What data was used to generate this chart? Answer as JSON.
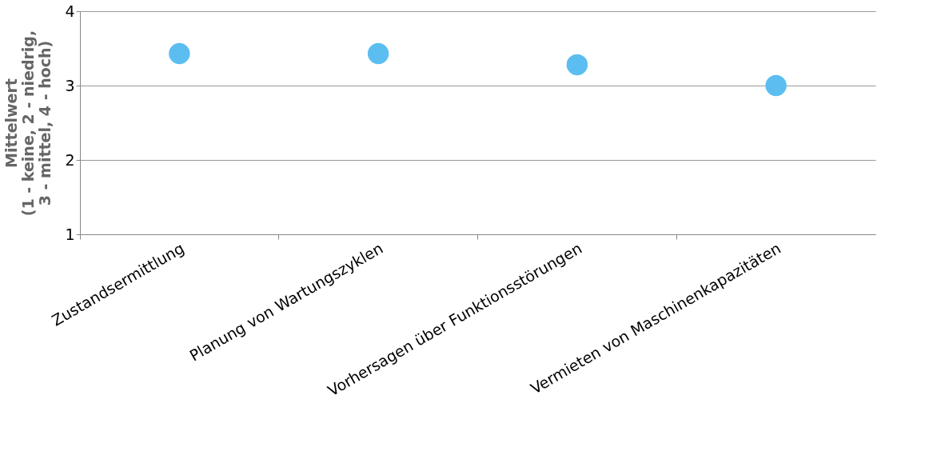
{
  "chart_data": {
    "type": "scatter",
    "ylabel": "Mittelwert\n(1 - keine, 2 - niedrig,\n3 - mittel, 4 - hoch)",
    "categories": [
      "Zustandsermittlung",
      "Planung von Wartungszyklen",
      "Vorhersagen über Funktionsstörungen",
      "Vermieten von Maschinenkapazitäten"
    ],
    "series": [
      {
        "color": "#5cbef0",
        "values": [
          3.43,
          3.43,
          3.28,
          3.0
        ]
      }
    ],
    "ylim": [
      1,
      4
    ],
    "yticks": [
      1,
      2,
      3,
      4
    ],
    "grid": "y",
    "marker": "circle",
    "legend": false
  }
}
